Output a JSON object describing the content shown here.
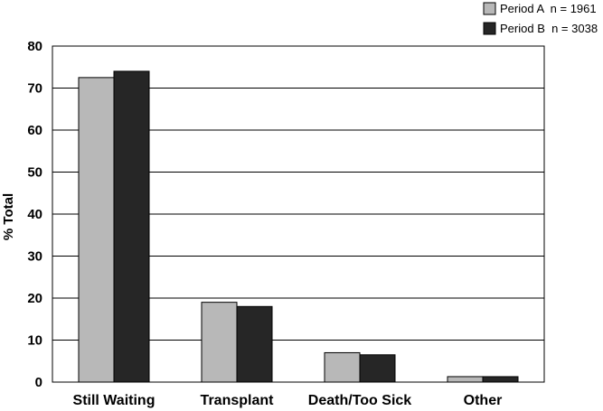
{
  "chart_data": {
    "type": "bar",
    "title": "",
    "xlabel": "",
    "ylabel": "% Total",
    "categories": [
      "Still Waiting",
      "Transplant",
      "Death/Too Sick",
      "Other"
    ],
    "series": [
      {
        "name": "Period A  n = 1961",
        "color": "#b8b8b8",
        "values": [
          72.5,
          19.0,
          7.0,
          1.3
        ]
      },
      {
        "name": "Period B  n = 3038",
        "color": "#262626",
        "values": [
          74.0,
          18.0,
          6.5,
          1.3
        ]
      }
    ],
    "ylim": [
      0,
      80
    ],
    "yticks": [
      0,
      10,
      20,
      30,
      40,
      50,
      60,
      70,
      80
    ],
    "grid": true,
    "legend_position": "top-right"
  }
}
